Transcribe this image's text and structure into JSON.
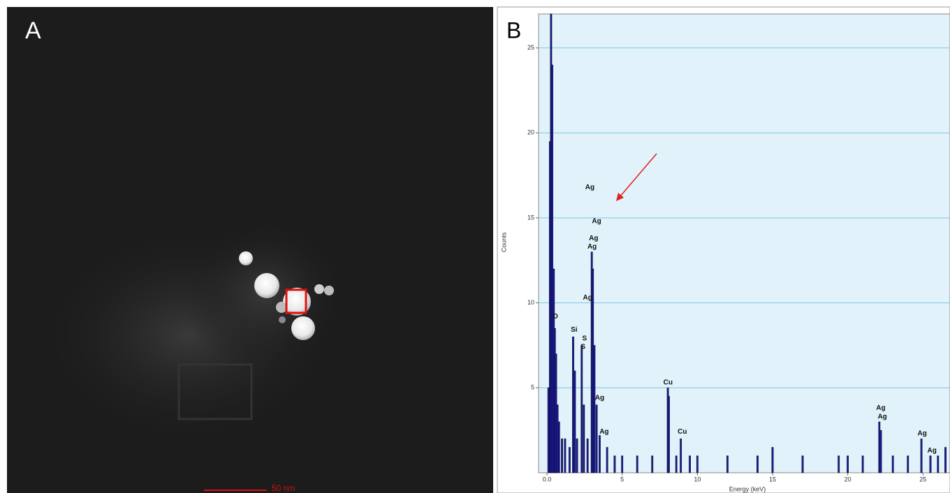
{
  "panel_a": {
    "label": "A",
    "scale_bar": "50 nm"
  },
  "chart_data": {
    "type": "bar",
    "panel_label": "B",
    "x_label": "Energy (keV)",
    "y_label": "Counts",
    "x": [
      0.1,
      0.2,
      0.27,
      0.35,
      0.45,
      0.52,
      0.6,
      0.7,
      0.8,
      1.0,
      1.2,
      1.5,
      1.74,
      1.85,
      2.0,
      2.31,
      2.45,
      2.7,
      2.98,
      3.05,
      3.15,
      3.3,
      3.5,
      4.0,
      4.5,
      5.0,
      6.0,
      7.0,
      8.04,
      8.1,
      8.6,
      8.9,
      9.5,
      10.0,
      12.0,
      14.0,
      15.0,
      17.0,
      19.4,
      20.0,
      21.0,
      22.1,
      22.2,
      23.0,
      24.0,
      24.9,
      25.5,
      26.0,
      26.5
    ],
    "values": [
      5,
      19.5,
      27,
      24,
      12,
      8.5,
      7,
      4,
      3,
      2,
      2,
      1.5,
      8,
      6,
      2,
      7.5,
      4,
      2,
      13,
      12,
      7.5,
      4,
      2.2,
      1.5,
      1,
      1,
      1,
      1,
      5,
      4.5,
      1,
      2,
      1,
      1,
      1,
      1,
      1.5,
      1,
      1,
      1,
      1,
      3,
      2.5,
      1,
      1,
      2,
      1,
      1,
      1.5
    ],
    "color": "#1c1c96",
    "xlim": [
      -0.56,
      26.8
    ],
    "ylim": [
      0,
      27
    ],
    "xticks": [
      {
        "value": 0,
        "label": "0.0"
      },
      5,
      10,
      15,
      20,
      25
    ],
    "yticks": [
      5,
      10,
      15,
      20,
      25
    ],
    "grid": true,
    "annotations": [
      {
        "text": "O",
        "x": 0.55,
        "y": 9.2
      },
      {
        "text": "Si",
        "x": 1.8,
        "y": 8.4
      },
      {
        "text": "S",
        "x": 2.5,
        "y": 7.9
      },
      {
        "text": "S",
        "x": 2.4,
        "y": 7.4
      },
      {
        "text": "Ag",
        "x": 2.85,
        "y": 16.8
      },
      {
        "text": "Ag",
        "x": 3.3,
        "y": 14.8
      },
      {
        "text": "Ag",
        "x": 3.1,
        "y": 13.8
      },
      {
        "text": "Ag",
        "x": 3.0,
        "y": 13.3
      },
      {
        "text": "Ag",
        "x": 2.7,
        "y": 10.3
      },
      {
        "text": "Ag",
        "x": 3.5,
        "y": 4.4
      },
      {
        "text": "Ag",
        "x": 3.8,
        "y": 2.4
      },
      {
        "text": "Cu",
        "x": 8.05,
        "y": 5.3
      },
      {
        "text": "Cu",
        "x": 9.0,
        "y": 2.4
      },
      {
        "text": "Ag",
        "x": 22.2,
        "y": 3.8
      },
      {
        "text": "Ag",
        "x": 22.3,
        "y": 3.3
      },
      {
        "text": "Ag",
        "x": 24.95,
        "y": 2.3
      },
      {
        "text": "Ag",
        "x": 25.6,
        "y": 1.3
      }
    ]
  }
}
